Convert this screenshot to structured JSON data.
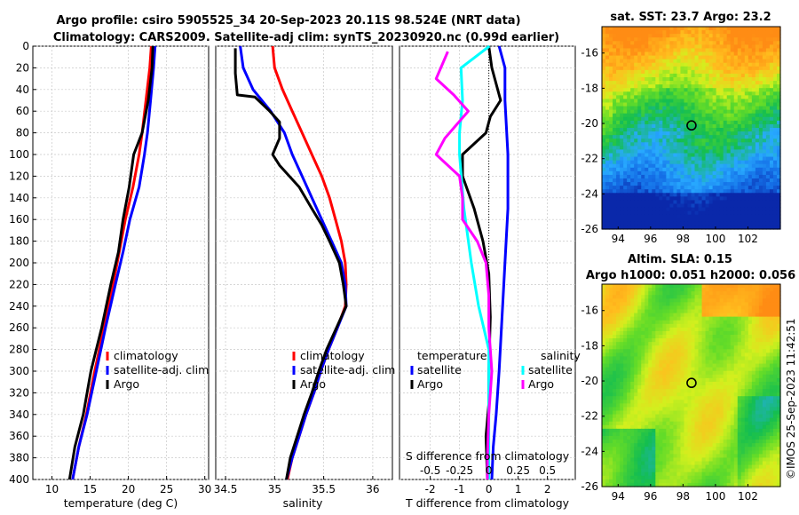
{
  "header": {
    "line1": "Argo profile: csiro 5905525_34 20-Sep-2023 20.11S 98.524E (NRT data)",
    "line2": "Climatology: CARS2009. Satellite-adj clim: synTS_20230920.nc (0.99d earlier)"
  },
  "colors": {
    "climatology": "#ff0000",
    "satellite": "#0000ff",
    "argo": "#000000",
    "argo_salinity_diff": "#ff00ff",
    "satellite_salinity_diff": "#00ffff"
  },
  "chart_data": [
    {
      "type": "line",
      "id": "temperature",
      "xlabel": "temperature (deg C)",
      "xlim": [
        7.5,
        30.5
      ],
      "xticks": [
        10,
        15,
        20,
        25,
        30
      ],
      "ylim": [
        400,
        0
      ],
      "yticks": [
        0,
        20,
        40,
        60,
        80,
        100,
        120,
        140,
        160,
        180,
        200,
        220,
        240,
        260,
        280,
        300,
        320,
        340,
        360,
        380,
        400
      ],
      "legend": [
        "climatology",
        "satellite-adj. clim",
        "Argo"
      ],
      "legend_position": "lower-right",
      "series": [
        {
          "name": "climatology",
          "color_key": "climatology",
          "points": [
            [
              23.0,
              0
            ],
            [
              22.8,
              20
            ],
            [
              22.3,
              50
            ],
            [
              21.8,
              80
            ],
            [
              21.4,
              100
            ],
            [
              20.6,
              130
            ],
            [
              19.6,
              160
            ],
            [
              18.8,
              190
            ],
            [
              18.0,
              220
            ],
            [
              16.8,
              260
            ],
            [
              15.6,
              300
            ],
            [
              14.5,
              340
            ],
            [
              13.5,
              370
            ],
            [
              12.7,
              400
            ]
          ]
        },
        {
          "name": "satellite-adj. clim",
          "color_key": "satellite",
          "points": [
            [
              23.5,
              0
            ],
            [
              23.3,
              20
            ],
            [
              22.9,
              50
            ],
            [
              22.5,
              80
            ],
            [
              22.1,
              100
            ],
            [
              21.4,
              130
            ],
            [
              20.2,
              160
            ],
            [
              19.3,
              190
            ],
            [
              18.3,
              220
            ],
            [
              17.0,
              260
            ],
            [
              15.8,
              300
            ],
            [
              14.6,
              340
            ],
            [
              13.5,
              370
            ],
            [
              12.7,
              400
            ]
          ]
        },
        {
          "name": "Argo",
          "color_key": "argo",
          "points": [
            [
              23.2,
              0
            ],
            [
              23.1,
              20
            ],
            [
              22.6,
              50
            ],
            [
              21.8,
              80
            ],
            [
              20.7,
              100
            ],
            [
              20.1,
              130
            ],
            [
              19.3,
              160
            ],
            [
              18.7,
              190
            ],
            [
              17.7,
              220
            ],
            [
              16.5,
              260
            ],
            [
              15.1,
              300
            ],
            [
              14.1,
              340
            ],
            [
              13.0,
              370
            ],
            [
              12.3,
              400
            ]
          ]
        }
      ]
    },
    {
      "type": "line",
      "id": "salinity",
      "xlabel": "salinity",
      "xlim": [
        34.4,
        36.2
      ],
      "xticks": [
        34.5,
        35,
        35.5,
        36
      ],
      "ylim": [
        400,
        0
      ],
      "yticks": [
        0,
        20,
        40,
        60,
        80,
        100,
        120,
        140,
        160,
        180,
        200,
        220,
        240,
        260,
        280,
        300,
        320,
        340,
        360,
        380,
        400
      ],
      "legend": [
        "climatology",
        "satellite-adj. clim",
        "Argo"
      ],
      "legend_position": "lower-right",
      "series": [
        {
          "name": "climatology",
          "color_key": "climatology",
          "points": [
            [
              34.98,
              0
            ],
            [
              35.0,
              20
            ],
            [
              35.08,
              40
            ],
            [
              35.18,
              60
            ],
            [
              35.28,
              80
            ],
            [
              35.38,
              100
            ],
            [
              35.48,
              120
            ],
            [
              35.56,
              140
            ],
            [
              35.62,
              160
            ],
            [
              35.68,
              180
            ],
            [
              35.72,
              200
            ],
            [
              35.73,
              220
            ],
            [
              35.72,
              240
            ],
            [
              35.64,
              260
            ],
            [
              35.55,
              280
            ],
            [
              35.47,
              300
            ],
            [
              35.4,
              320
            ],
            [
              35.32,
              340
            ],
            [
              35.25,
              360
            ],
            [
              35.18,
              380
            ],
            [
              35.13,
              400
            ]
          ]
        },
        {
          "name": "satellite-adj. clim",
          "color_key": "satellite",
          "points": [
            [
              34.65,
              0
            ],
            [
              34.68,
              20
            ],
            [
              34.78,
              40
            ],
            [
              34.96,
              60
            ],
            [
              35.1,
              80
            ],
            [
              35.18,
              100
            ],
            [
              35.28,
              120
            ],
            [
              35.38,
              140
            ],
            [
              35.48,
              160
            ],
            [
              35.58,
              180
            ],
            [
              35.68,
              200
            ],
            [
              35.72,
              220
            ],
            [
              35.73,
              240
            ],
            [
              35.64,
              260
            ],
            [
              35.55,
              280
            ],
            [
              35.47,
              300
            ],
            [
              35.4,
              320
            ],
            [
              35.32,
              340
            ],
            [
              35.25,
              360
            ],
            [
              35.18,
              380
            ],
            [
              35.12,
              400
            ]
          ]
        },
        {
          "name": "Argo",
          "color_key": "argo",
          "points": [
            [
              34.6,
              2
            ],
            [
              34.6,
              25
            ],
            [
              34.62,
              45
            ],
            [
              34.8,
              47
            ],
            [
              34.95,
              60
            ],
            [
              35.05,
              70
            ],
            [
              35.05,
              85
            ],
            [
              34.98,
              100
            ],
            [
              35.05,
              110
            ],
            [
              35.25,
              130
            ],
            [
              35.38,
              150
            ],
            [
              35.48,
              165
            ],
            [
              35.56,
              180
            ],
            [
              35.66,
              200
            ],
            [
              35.7,
              220
            ],
            [
              35.73,
              240
            ],
            [
              35.63,
              260
            ],
            [
              35.53,
              280
            ],
            [
              35.45,
              300
            ],
            [
              35.38,
              320
            ],
            [
              35.3,
              340
            ],
            [
              35.23,
              360
            ],
            [
              35.16,
              380
            ],
            [
              35.12,
              400
            ]
          ]
        }
      ]
    },
    {
      "type": "line",
      "id": "difference",
      "xlabel": "T difference from climatology",
      "xlabel_top": "S difference from climatology",
      "xlim": [
        -3.05,
        2.95
      ],
      "xticks": [
        -2,
        -1,
        0,
        1,
        2
      ],
      "top_tick_labels": [
        "-0.5",
        "-0.25",
        "0",
        "0.25",
        "0.5"
      ],
      "ylim": [
        400,
        0
      ],
      "yticks": [
        0,
        20,
        40,
        60,
        80,
        100,
        120,
        140,
        160,
        180,
        200,
        220,
        240,
        260,
        280,
        300,
        320,
        340,
        360,
        380,
        400
      ],
      "legend_temperature_heading": "temperature",
      "legend_salinity_heading": "salinity",
      "legend_labels": [
        "satellite",
        "Argo",
        "satellite",
        "Argo"
      ],
      "series": [
        {
          "name": "temperature satellite",
          "color_key": "satellite",
          "points": [
            [
              0.35,
              0
            ],
            [
              0.55,
              20
            ],
            [
              0.55,
              50
            ],
            [
              0.65,
              100
            ],
            [
              0.65,
              150
            ],
            [
              0.55,
              200
            ],
            [
              0.45,
              250
            ],
            [
              0.35,
              300
            ],
            [
              0.25,
              340
            ],
            [
              0.15,
              370
            ],
            [
              0.1,
              400
            ]
          ]
        },
        {
          "name": "temperature Argo",
          "color_key": "argo",
          "points": [
            [
              0,
              0
            ],
            [
              0.1,
              20
            ],
            [
              0.4,
              50
            ],
            [
              0.05,
              65
            ],
            [
              -0.1,
              80
            ],
            [
              -0.9,
              100
            ],
            [
              -0.9,
              120
            ],
            [
              -0.5,
              150
            ],
            [
              -0.2,
              180
            ],
            [
              0.0,
              210
            ],
            [
              0.05,
              250
            ],
            [
              0.0,
              300
            ],
            [
              0.0,
              330
            ],
            [
              -0.1,
              360
            ],
            [
              -0.05,
              400
            ]
          ]
        },
        {
          "name": "salinity satellite",
          "color_key": "satellite_salinity_diff",
          "points": [
            [
              0.02,
              0
            ],
            [
              -0.95,
              20
            ],
            [
              -0.9,
              50
            ],
            [
              -1.0,
              80
            ],
            [
              -1.0,
              100
            ],
            [
              -0.85,
              150
            ],
            [
              -0.6,
              200
            ],
            [
              -0.35,
              240
            ],
            [
              0.0,
              280
            ],
            [
              0.0,
              330
            ],
            [
              0.0,
              400
            ]
          ]
        },
        {
          "name": "salinity Argo",
          "color_key": "argo_salinity_diff",
          "points": [
            [
              -1.4,
              5
            ],
            [
              -1.8,
              30
            ],
            [
              -1.2,
              45
            ],
            [
              -0.7,
              60
            ],
            [
              -1.5,
              85
            ],
            [
              -1.8,
              100
            ],
            [
              -1.0,
              120
            ],
            [
              -0.9,
              140
            ],
            [
              -0.9,
              160
            ],
            [
              -0.4,
              180
            ],
            [
              -0.1,
              200
            ],
            [
              0.0,
              230
            ],
            [
              0.0,
              260
            ],
            [
              0.1,
              300
            ],
            [
              0.0,
              340
            ],
            [
              -0.05,
              380
            ],
            [
              -0.05,
              400
            ]
          ]
        }
      ]
    },
    {
      "type": "heatmap",
      "id": "sst_map",
      "title": "sat. SST: 23.7 Argo: 23.2",
      "xlim": [
        93,
        104
      ],
      "ylim": [
        -26,
        -14.5
      ],
      "xticks": [
        94,
        96,
        98,
        100,
        102
      ],
      "yticks": [
        -16,
        -18,
        -20,
        -22,
        -24,
        -26
      ],
      "marker": {
        "lon": 98.524,
        "lat": -20.11
      }
    },
    {
      "type": "heatmap",
      "id": "sla_map",
      "title_line1": "Altim. SLA: 0.15",
      "title_line2": "Argo h1000: 0.051 h2000: 0.056",
      "xlim": [
        93,
        104
      ],
      "ylim": [
        -26,
        -14.5
      ],
      "xticks": [
        94,
        96,
        98,
        100,
        102
      ],
      "yticks": [
        -16,
        -18,
        -20,
        -22,
        -24,
        -26
      ],
      "marker": {
        "lon": 98.524,
        "lat": -20.11
      }
    }
  ],
  "footer": {
    "credit": "©IMOS 25-Sep-2023 11:42:51"
  }
}
